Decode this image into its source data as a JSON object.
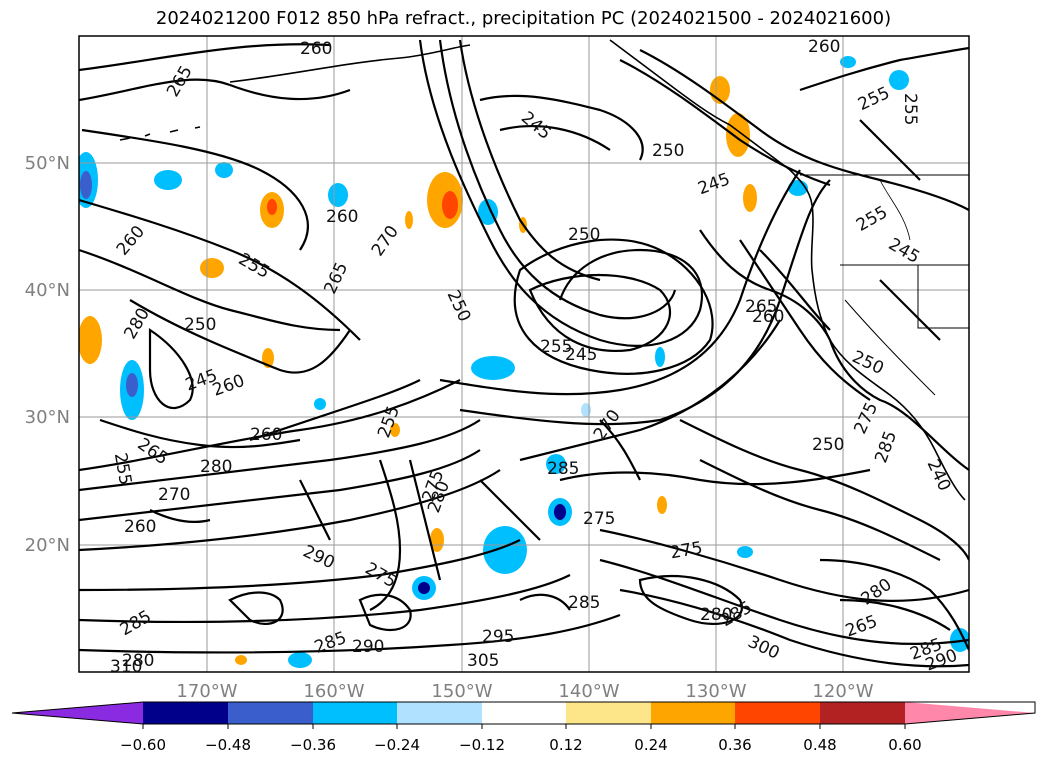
{
  "title": "2024021200 F012 850 hPa refract., precipitation PC (2024021500 - 2024021600)",
  "lat_labels": [
    "50°N",
    "40°N",
    "30°N",
    "20°N"
  ],
  "lon_labels": [
    "170°W",
    "160°W",
    "150°W",
    "140°W",
    "130°W",
    "120°W"
  ],
  "contour_labels": [
    "260",
    "265",
    "245",
    "250",
    "245",
    "260",
    "255",
    "255",
    "260",
    "270",
    "265",
    "260",
    "255",
    "250",
    "245",
    "260",
    "260",
    "250",
    "255",
    "245",
    "250",
    "265",
    "260",
    "250",
    "255",
    "245",
    "250",
    "275",
    "285",
    "280",
    "280",
    "270",
    "260",
    "265",
    "255",
    "275",
    "285",
    "270",
    "275",
    "285",
    "290",
    "275",
    "285",
    "290",
    "295",
    "305",
    "310",
    "280",
    "285",
    "280",
    "285",
    "300",
    "265",
    "285",
    "280",
    "290",
    "255",
    "240",
    "280",
    "275"
  ],
  "colorbar": {
    "ticks": [
      "−0.60",
      "−0.48",
      "−0.36",
      "−0.24",
      "−0.12",
      "0.12",
      "0.24",
      "0.36",
      "0.48",
      "0.60"
    ],
    "colors": [
      "#8a2be2",
      "#00008b",
      "#3a5fcd",
      "#00bfff",
      "#b0e2ff",
      "#ffffff",
      "#fde68a",
      "#ffa500",
      "#ff4500",
      "#b22222",
      "#ff88aa"
    ]
  },
  "field_colors": {
    "contour": "#000000",
    "grid": "#9a9a9a",
    "coast": "#000000"
  }
}
